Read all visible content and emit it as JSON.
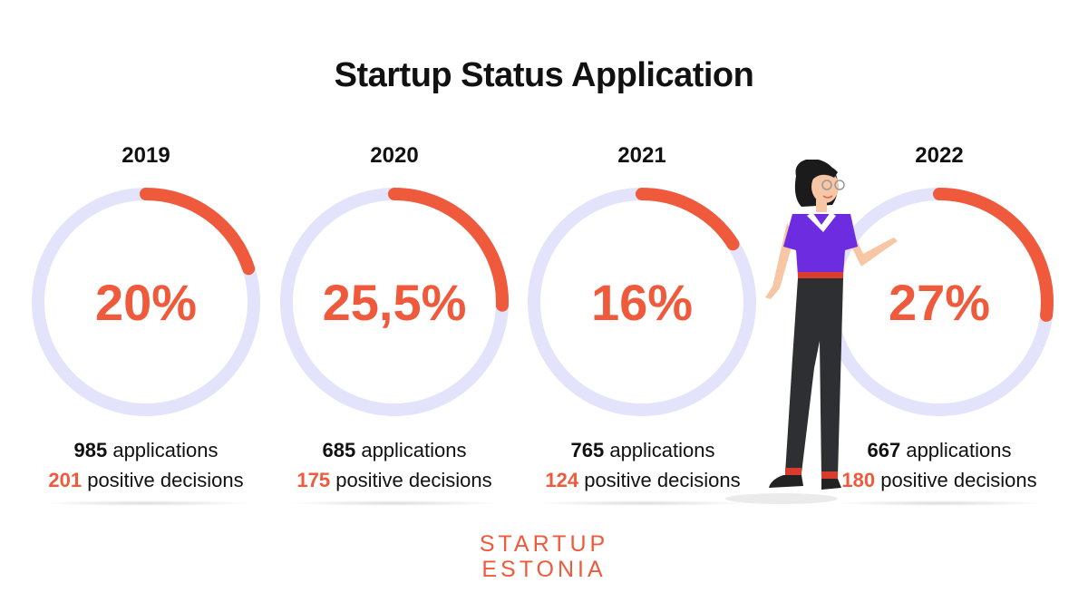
{
  "title": "Startup Status Application",
  "colors": {
    "accent": "#f05a3c",
    "track": "#e3e3fb",
    "text": "#111111"
  },
  "chart_data": {
    "type": "donut",
    "title": "Startup Status Application",
    "items": [
      {
        "year": "2019",
        "percent": 20,
        "percent_label": "20%",
        "applications": "985",
        "positive_decisions": "201"
      },
      {
        "year": "2020",
        "percent": 25.5,
        "percent_label": "25,5%",
        "applications": "685",
        "positive_decisions": "175"
      },
      {
        "year": "2021",
        "percent": 16,
        "percent_label": "16%",
        "applications": "765",
        "positive_decisions": "124"
      },
      {
        "year": "2022",
        "percent": 27,
        "percent_label": "27%",
        "applications": "667",
        "positive_decisions": "180"
      }
    ]
  },
  "labels": {
    "applications": "applications",
    "positive_decisions": "positive decisions"
  },
  "logo": {
    "line1": "STARTUP",
    "line2": "ESTONIA"
  }
}
